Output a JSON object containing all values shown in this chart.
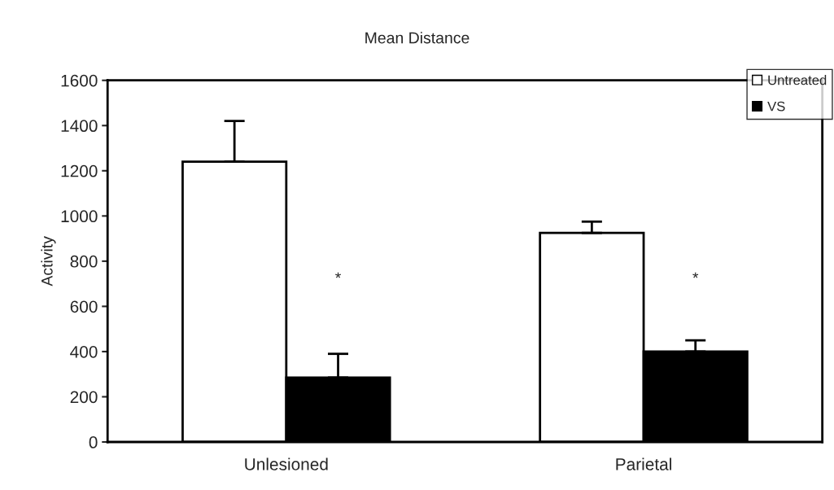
{
  "chart_data": {
    "type": "bar",
    "title": "Mean Distance",
    "ylabel": "Activity",
    "categories": [
      "Unlesioned",
      "Parietal"
    ],
    "series": [
      {
        "name": "Untreated",
        "color": "#ffffff",
        "values": [
          1240,
          925
        ],
        "errors": [
          [
            1240,
            1420
          ],
          [
            925,
            975
          ]
        ]
      },
      {
        "name": "VS",
        "color": "#000000",
        "values": [
          285,
          400
        ],
        "errors": [
          [
            285,
            390
          ],
          [
            400,
            450
          ]
        ]
      }
    ],
    "ylim": [
      0,
      1600
    ],
    "yticks": [
      0,
      200,
      400,
      600,
      800,
      1000,
      1200,
      1400,
      1600
    ],
    "annotations": [
      "*",
      "*"
    ],
    "legend": "top right",
    "grid": false
  }
}
